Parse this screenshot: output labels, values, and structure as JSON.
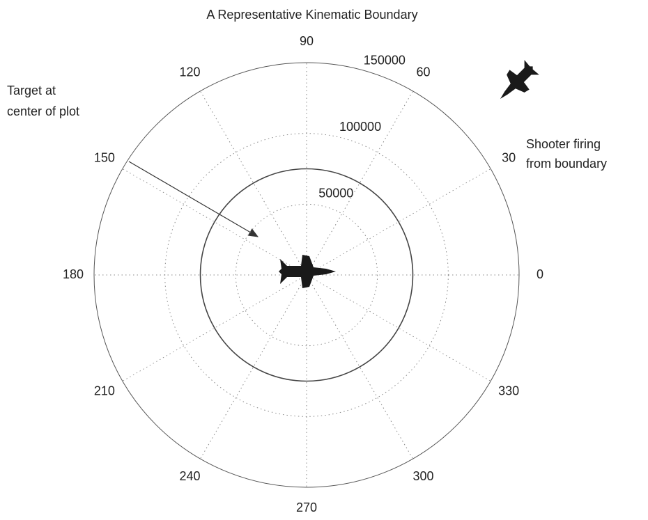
{
  "chart_data": {
    "type": "polar",
    "title": "A Representative Kinematic Boundary",
    "rlim": [
      0,
      150000
    ],
    "rticks": [
      50000,
      100000,
      150000
    ],
    "thetaticks": [
      0,
      30,
      60,
      90,
      120,
      150,
      180,
      210,
      240,
      270,
      300,
      330
    ],
    "grid": true,
    "series": [
      {
        "color": "#444444",
        "theta": [
          0,
          30,
          60,
          90,
          120,
          150,
          180,
          210,
          240,
          270,
          300,
          330
        ],
        "r": [
          75000,
          75000,
          75000,
          75000,
          75000,
          75000,
          75000,
          75000,
          75000,
          75000,
          75000,
          75000
        ]
      }
    ],
    "annotations": [
      {
        "lines": [
          "Target at",
          "center of plot"
        ]
      },
      {
        "lines": [
          "Shooter firing",
          "from boundary"
        ]
      }
    ]
  }
}
